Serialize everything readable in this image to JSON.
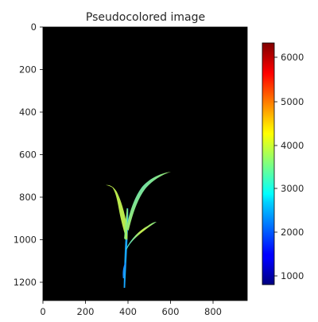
{
  "chart_data": {
    "type": "heatmap",
    "title": "Pseudocolored image",
    "xlabel": "",
    "ylabel": "",
    "xlim": [
      0,
      960
    ],
    "ylim": [
      1280,
      0
    ],
    "xticks": [
      "0",
      "200",
      "400",
      "600",
      "800"
    ],
    "yticks": [
      "0",
      "200",
      "400",
      "600",
      "800",
      "1000",
      "1200"
    ],
    "background": "#000000",
    "colormap": "jet",
    "colorbar": {
      "range": [
        800,
        6300
      ],
      "ticks": [
        "1000",
        "2000",
        "3000",
        "4000",
        "5000",
        "6000"
      ]
    },
    "grid": false,
    "legend": "none"
  }
}
